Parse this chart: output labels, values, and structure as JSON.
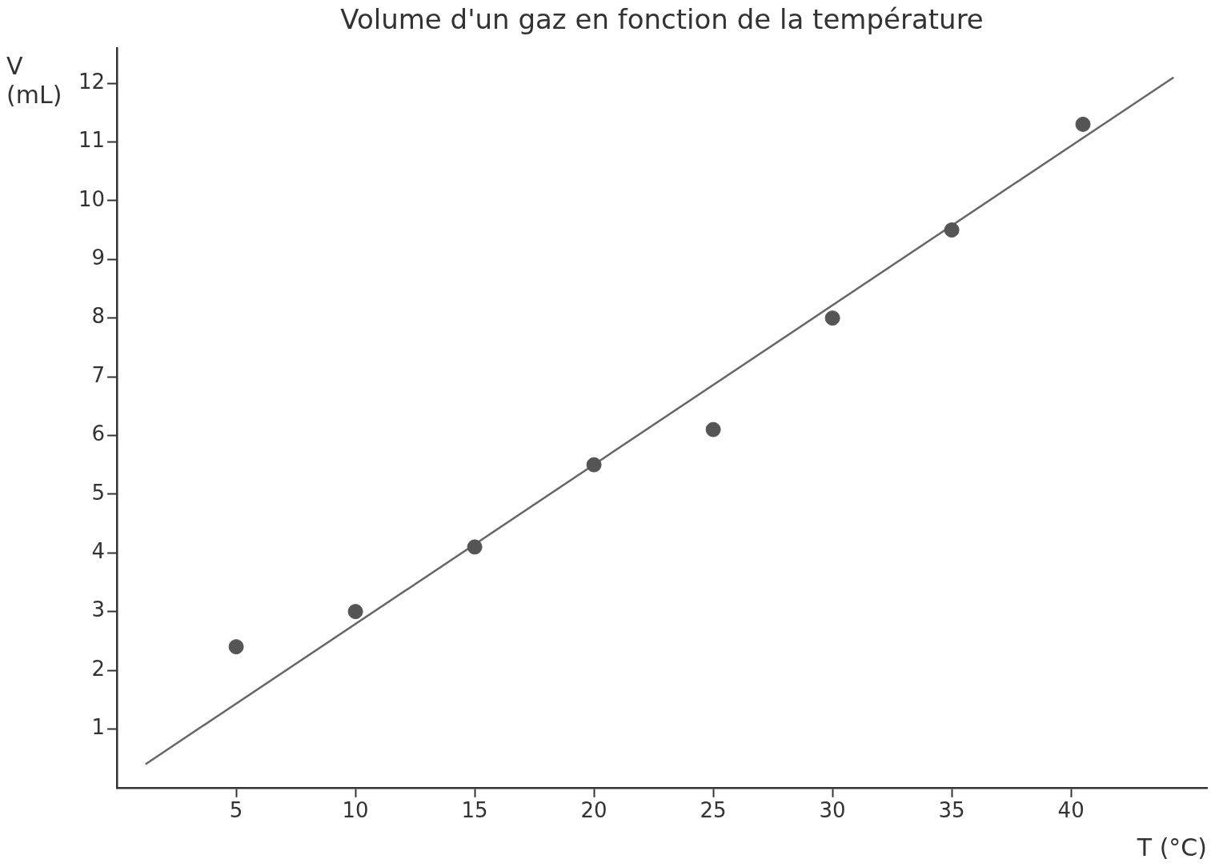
{
  "chart_data": {
    "type": "scatter",
    "title": "Volume d'un gaz en fonction de la température",
    "xlabel": "T (°C)",
    "ylabel": "V (mL)",
    "xlim": [
      0,
      45.7
    ],
    "ylim": [
      0,
      12.6
    ],
    "xticks": [
      5,
      10,
      15,
      20,
      25,
      30,
      35,
      40
    ],
    "yticks": [
      1,
      2,
      3,
      4,
      5,
      6,
      7,
      8,
      9,
      10,
      11,
      12
    ],
    "grid": false,
    "legend": false,
    "series": [
      {
        "marker": "circle",
        "color": "#555555",
        "x": [
          5,
          10,
          15,
          20,
          25,
          30,
          35,
          40.5
        ],
        "values": [
          2.4,
          3.0,
          4.1,
          5.5,
          6.1,
          8.0,
          9.5,
          11.3
        ]
      },
      {
        "type": "line",
        "marker": "none",
        "color": "#666666",
        "x": [
          1.2,
          44.3
        ],
        "values": [
          0.4,
          12.1
        ]
      }
    ]
  }
}
